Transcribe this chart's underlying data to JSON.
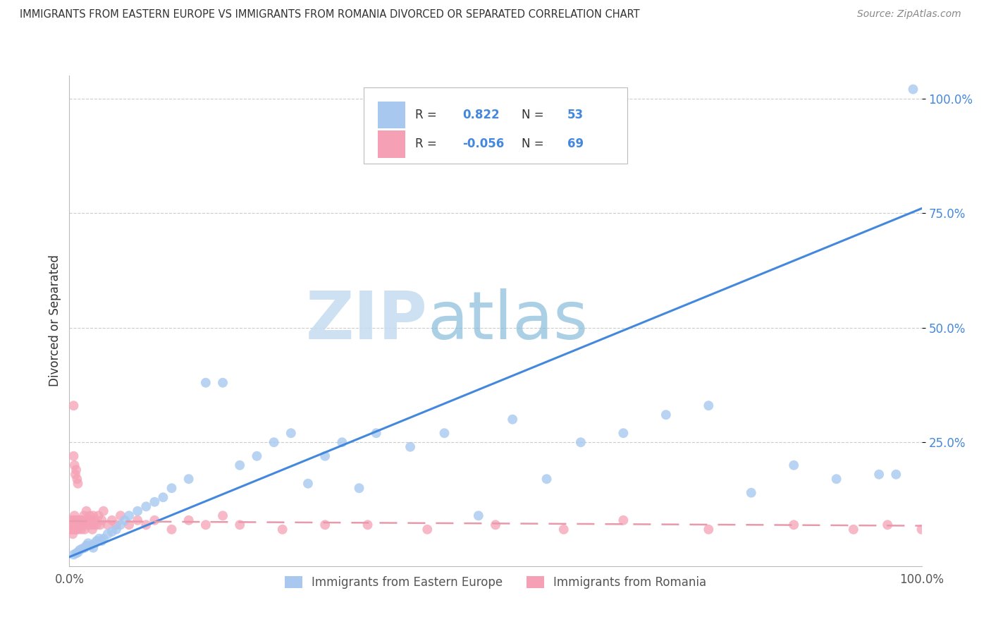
{
  "title": "IMMIGRANTS FROM EASTERN EUROPE VS IMMIGRANTS FROM ROMANIA DIVORCED OR SEPARATED CORRELATION CHART",
  "source": "Source: ZipAtlas.com",
  "ylabel": "Divorced or Separated",
  "legend_label_1": "Immigrants from Eastern Europe",
  "legend_label_2": "Immigrants from Romania",
  "r1": 0.822,
  "n1": 53,
  "r2": -0.056,
  "n2": 69,
  "color_blue": "#A8C8F0",
  "color_pink": "#F5A0B5",
  "trendline_blue": "#4488DD",
  "trendline_pink": "#E899AA",
  "background": "#ffffff",
  "watermark_zip": "ZIP",
  "watermark_atlas": "atlas",
  "xlim": [
    0,
    1.0
  ],
  "ylim": [
    -0.02,
    1.05
  ],
  "xticks": [
    0.0,
    1.0
  ],
  "yticks": [
    0.25,
    0.5,
    0.75,
    1.0
  ],
  "xticklabels": [
    "0.0%",
    "100.0%"
  ],
  "yticklabels": [
    "25.0%",
    "50.0%",
    "75.0%",
    "100.0%"
  ],
  "blue_x": [
    0.005,
    0.008,
    0.01,
    0.012,
    0.015,
    0.018,
    0.02,
    0.022,
    0.025,
    0.028,
    0.03,
    0.032,
    0.035,
    0.038,
    0.04,
    0.045,
    0.05,
    0.055,
    0.06,
    0.065,
    0.07,
    0.08,
    0.09,
    0.1,
    0.11,
    0.12,
    0.14,
    0.16,
    0.18,
    0.2,
    0.22,
    0.24,
    0.26,
    0.28,
    0.3,
    0.32,
    0.34,
    0.36,
    0.4,
    0.44,
    0.48,
    0.52,
    0.56,
    0.6,
    0.65,
    0.7,
    0.75,
    0.8,
    0.85,
    0.9,
    0.95,
    0.97,
    0.99
  ],
  "blue_y": [
    0.005,
    0.008,
    0.01,
    0.015,
    0.018,
    0.02,
    0.025,
    0.03,
    0.025,
    0.02,
    0.03,
    0.035,
    0.04,
    0.035,
    0.04,
    0.05,
    0.055,
    0.06,
    0.07,
    0.08,
    0.09,
    0.1,
    0.11,
    0.12,
    0.13,
    0.15,
    0.17,
    0.38,
    0.38,
    0.2,
    0.22,
    0.25,
    0.27,
    0.16,
    0.22,
    0.25,
    0.15,
    0.27,
    0.24,
    0.27,
    0.09,
    0.3,
    0.17,
    0.25,
    0.27,
    0.31,
    0.33,
    0.14,
    0.2,
    0.17,
    0.18,
    0.18,
    1.02
  ],
  "pink_x": [
    0.001,
    0.002,
    0.002,
    0.003,
    0.003,
    0.004,
    0.004,
    0.005,
    0.005,
    0.006,
    0.006,
    0.007,
    0.007,
    0.008,
    0.008,
    0.009,
    0.009,
    0.01,
    0.01,
    0.011,
    0.012,
    0.013,
    0.014,
    0.015,
    0.016,
    0.017,
    0.018,
    0.019,
    0.02,
    0.021,
    0.022,
    0.023,
    0.024,
    0.025,
    0.026,
    0.027,
    0.028,
    0.029,
    0.03,
    0.032,
    0.034,
    0.036,
    0.038,
    0.04,
    0.045,
    0.05,
    0.055,
    0.06,
    0.07,
    0.08,
    0.09,
    0.1,
    0.12,
    0.14,
    0.16,
    0.18,
    0.2,
    0.25,
    0.3,
    0.35,
    0.42,
    0.5,
    0.58,
    0.65,
    0.75,
    0.85,
    0.92,
    0.96,
    1.0
  ],
  "pink_y": [
    0.06,
    0.07,
    0.08,
    0.06,
    0.07,
    0.05,
    0.07,
    0.06,
    0.08,
    0.07,
    0.09,
    0.06,
    0.08,
    0.07,
    0.06,
    0.08,
    0.07,
    0.06,
    0.08,
    0.07,
    0.08,
    0.07,
    0.06,
    0.08,
    0.07,
    0.09,
    0.06,
    0.08,
    0.1,
    0.07,
    0.08,
    0.07,
    0.09,
    0.07,
    0.08,
    0.06,
    0.09,
    0.07,
    0.08,
    0.07,
    0.09,
    0.07,
    0.08,
    0.1,
    0.07,
    0.08,
    0.07,
    0.09,
    0.07,
    0.08,
    0.07,
    0.08,
    0.06,
    0.08,
    0.07,
    0.09,
    0.07,
    0.06,
    0.07,
    0.07,
    0.06,
    0.07,
    0.06,
    0.08,
    0.06,
    0.07,
    0.06,
    0.07,
    0.06
  ],
  "pink_outlier_x": [
    0.005,
    0.005,
    0.006,
    0.007,
    0.008,
    0.009,
    0.01
  ],
  "pink_outlier_y": [
    0.33,
    0.22,
    0.2,
    0.18,
    0.19,
    0.17,
    0.16
  ],
  "blue_trend_x": [
    0.0,
    1.0
  ],
  "blue_trend_y": [
    0.0,
    0.76
  ],
  "pink_trend_x": [
    0.0,
    1.0
  ],
  "pink_trend_y": [
    0.078,
    0.068
  ]
}
